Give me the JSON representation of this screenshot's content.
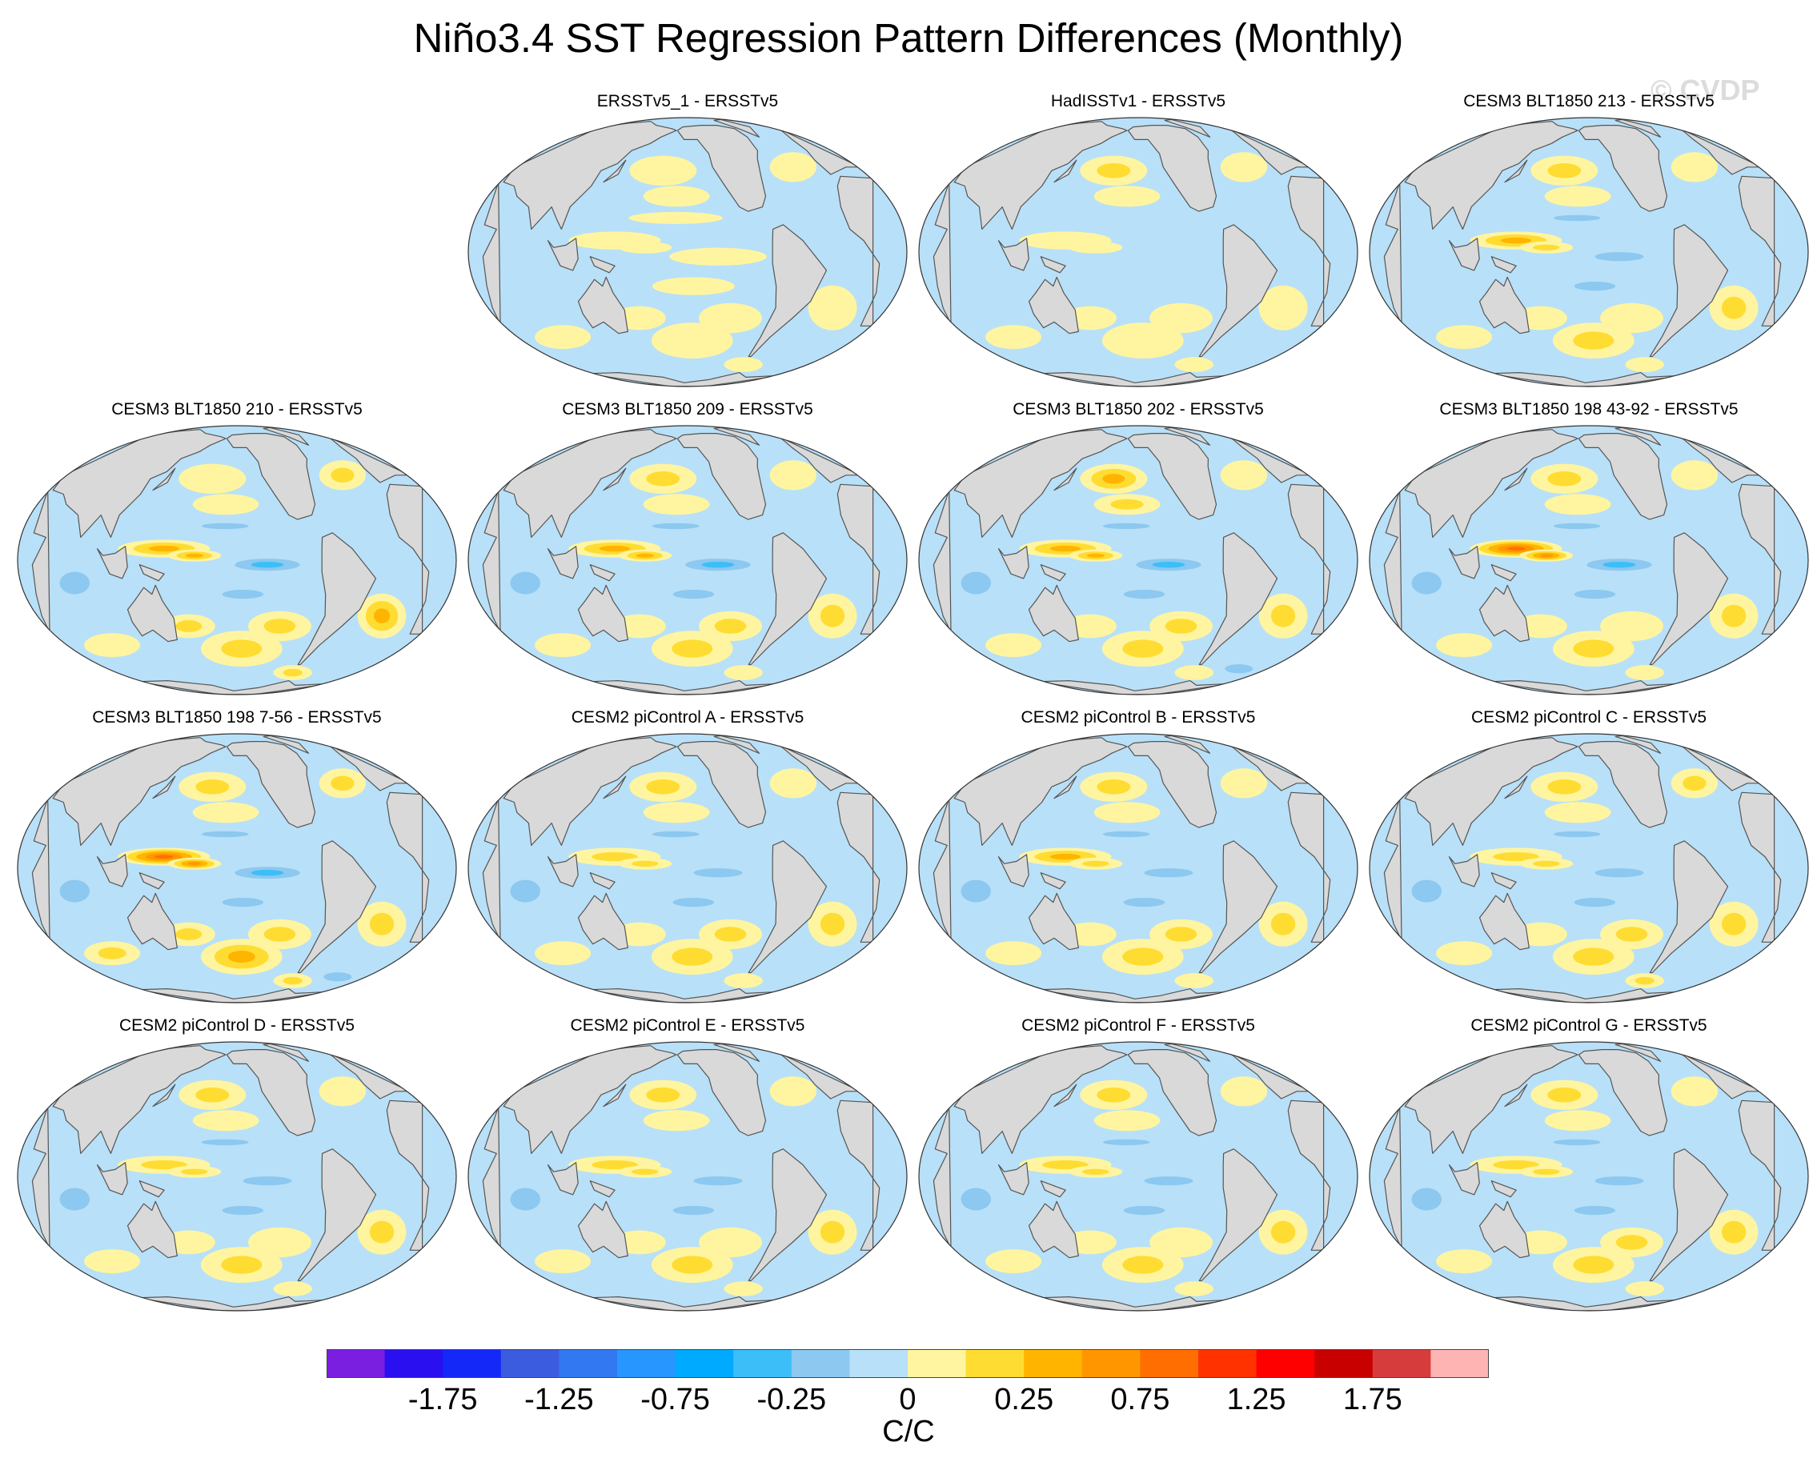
{
  "title": "Niño3.4 SST Regression Pattern Differences (Monthly)",
  "watermark": "© CVDP",
  "panels": [
    {
      "title": "ERSSTv5_1 - ERSSTv5",
      "row": 0,
      "col": 1,
      "pattern": [
        0.05,
        0.1,
        0.0,
        0.05,
        -0.05,
        0.1
      ]
    },
    {
      "title": "HadISSTv1 - ERSSTv5",
      "row": 0,
      "col": 2,
      "pattern": [
        0.1,
        0.45,
        -0.2,
        0.2,
        -0.1,
        0.2
      ]
    },
    {
      "title": "CESM3 BLT1850 213 - ERSSTv5",
      "row": 0,
      "col": 3,
      "pattern": [
        0.6,
        0.4,
        -0.5,
        0.3,
        -0.2,
        0.3
      ]
    },
    {
      "title": "CESM3 BLT1850 210 - ERSSTv5",
      "row": 1,
      "col": 0,
      "pattern": [
        0.7,
        0.25,
        -0.6,
        0.45,
        -0.3,
        0.55
      ]
    },
    {
      "title": "CESM3 BLT1850 209 - ERSSTv5",
      "row": 1,
      "col": 1,
      "pattern": [
        0.75,
        0.5,
        -0.6,
        0.35,
        -0.3,
        0.4
      ]
    },
    {
      "title": "CESM3 BLT1850 202 - ERSSTv5",
      "row": 1,
      "col": 2,
      "pattern": [
        0.7,
        0.55,
        -0.6,
        0.35,
        -0.35,
        0.35
      ]
    },
    {
      "title": "CESM3 BLT1850 198 43-92 - ERSSTv5",
      "row": 1,
      "col": 3,
      "pattern": [
        1.1,
        0.45,
        -0.55,
        0.3,
        -0.3,
        0.35
      ]
    },
    {
      "title": "CESM3 BLT1850 198 7-56 - ERSSTv5",
      "row": 2,
      "col": 0,
      "pattern": [
        1.05,
        0.4,
        -0.7,
        0.55,
        -0.35,
        0.5
      ]
    },
    {
      "title": "CESM2 piControl A - ERSSTv5",
      "row": 2,
      "col": 1,
      "pattern": [
        0.45,
        0.45,
        -0.45,
        0.35,
        -0.3,
        0.4
      ]
    },
    {
      "title": "CESM2 piControl B - ERSSTv5",
      "row": 2,
      "col": 2,
      "pattern": [
        0.55,
        0.4,
        -0.5,
        0.35,
        -0.3,
        0.4
      ]
    },
    {
      "title": "CESM2 piControl C - ERSSTv5",
      "row": 2,
      "col": 3,
      "pattern": [
        0.45,
        0.45,
        -0.45,
        0.4,
        -0.3,
        0.45
      ]
    },
    {
      "title": "CESM2 piControl D - ERSSTv5",
      "row": 3,
      "col": 0,
      "pattern": [
        0.45,
        0.45,
        -0.45,
        0.3,
        -0.3,
        0.35
      ]
    },
    {
      "title": "CESM2 piControl E - ERSSTv5",
      "row": 3,
      "col": 1,
      "pattern": [
        0.45,
        0.5,
        -0.4,
        0.3,
        -0.3,
        0.35
      ]
    },
    {
      "title": "CESM2 piControl F - ERSSTv5",
      "row": 3,
      "col": 2,
      "pattern": [
        0.5,
        0.45,
        -0.45,
        0.3,
        -0.3,
        0.35
      ]
    },
    {
      "title": "CESM2 piControl G - ERSSTv5",
      "row": 3,
      "col": 3,
      "pattern": [
        0.45,
        0.5,
        -0.45,
        0.35,
        -0.3,
        0.4
      ]
    }
  ],
  "colorbar": {
    "colors": [
      "#7a1ee0",
      "#2a10f0",
      "#1428f8",
      "#3c5ce0",
      "#3278f0",
      "#2896ff",
      "#00aaff",
      "#3cbef8",
      "#8cc8ef",
      "#b8e0f8",
      "#fff5a0",
      "#ffdc32",
      "#ffb400",
      "#ff9600",
      "#ff6e00",
      "#ff3200",
      "#ff0000",
      "#c80000",
      "#d73c3c",
      "#ffb4b4"
    ],
    "labels": [
      "-1.75",
      "-1.25",
      "-0.75",
      "-0.25",
      "0",
      "0.25",
      "0.75",
      "1.25",
      "1.75"
    ],
    "label_boundary_index": [
      2,
      4,
      6,
      8,
      10,
      12,
      14,
      16,
      18
    ],
    "units": "C/C"
  },
  "map_colors": {
    "land": "#d9d9d9",
    "coast": "#555555",
    "ocean_near_zero": "#b8e0f8"
  }
}
